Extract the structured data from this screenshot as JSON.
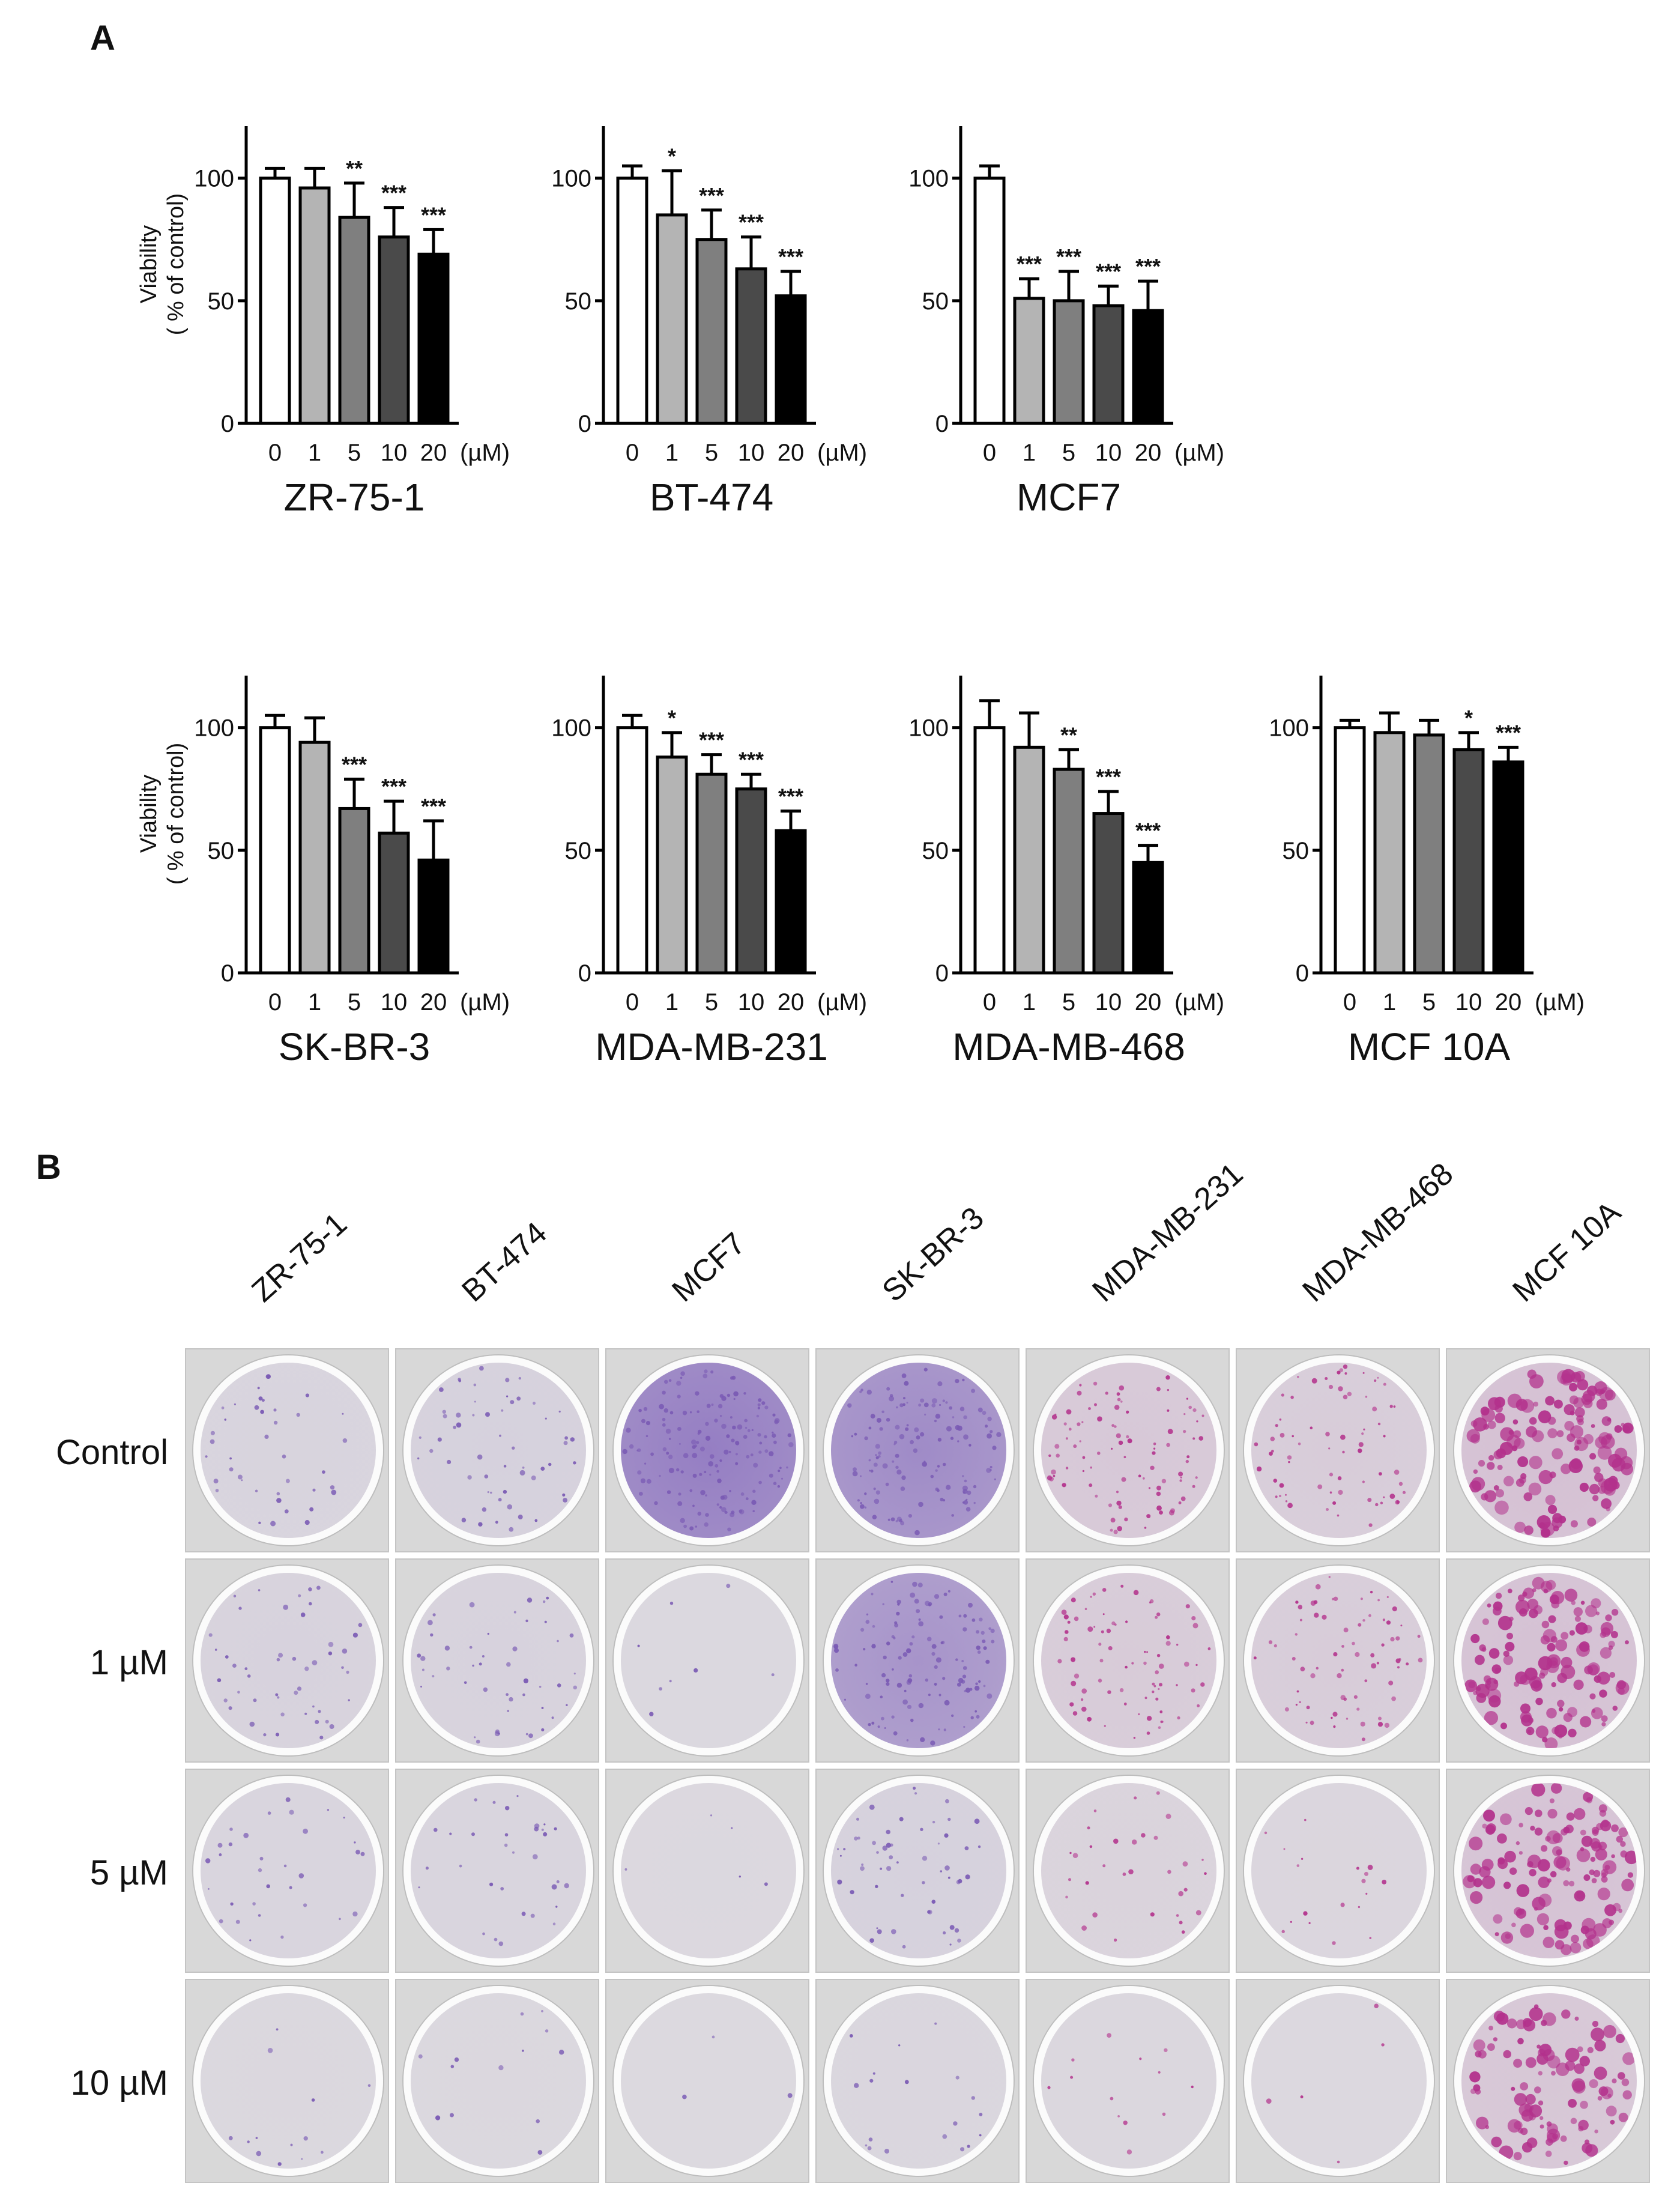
{
  "panels": {
    "a": "A",
    "b": "B"
  },
  "doses": [
    "0",
    "1",
    "5",
    "10",
    "20"
  ],
  "dose_unit": "(µM)",
  "ylabel_line1": "Viability",
  "ylabel_line2": "( % of control)",
  "chart_data": [
    {
      "type": "bar",
      "title": "ZR-75-1",
      "categories": [
        "0",
        "1",
        "5",
        "10",
        "20"
      ],
      "values": [
        100,
        96,
        84,
        76,
        69
      ],
      "errors": [
        4,
        8,
        14,
        12,
        10
      ],
      "sig": [
        "",
        "",
        "**",
        "***",
        "***"
      ],
      "ylim": [
        0,
        120
      ],
      "yticks": [
        0,
        50,
        100
      ],
      "ylabel": "Viability ( % of control)",
      "xlabel": "(µM)"
    },
    {
      "type": "bar",
      "title": "BT-474",
      "categories": [
        "0",
        "1",
        "5",
        "10",
        "20"
      ],
      "values": [
        100,
        85,
        75,
        63,
        52
      ],
      "errors": [
        5,
        18,
        12,
        13,
        10
      ],
      "sig": [
        "",
        "*",
        "***",
        "***",
        "***"
      ],
      "ylim": [
        0,
        120
      ],
      "yticks": [
        0,
        50,
        100
      ],
      "ylabel": "",
      "xlabel": "(µM)"
    },
    {
      "type": "bar",
      "title": "MCF7",
      "categories": [
        "0",
        "1",
        "5",
        "10",
        "20"
      ],
      "values": [
        100,
        51,
        50,
        48,
        46
      ],
      "errors": [
        5,
        8,
        12,
        8,
        12
      ],
      "sig": [
        "",
        "***",
        "***",
        "***",
        "***"
      ],
      "ylim": [
        0,
        120
      ],
      "yticks": [
        0,
        50,
        100
      ],
      "ylabel": "",
      "xlabel": "(µM)"
    },
    {
      "type": "bar",
      "title": "SK-BR-3",
      "categories": [
        "0",
        "1",
        "5",
        "10",
        "20"
      ],
      "values": [
        100,
        94,
        67,
        57,
        46
      ],
      "errors": [
        5,
        10,
        12,
        13,
        16
      ],
      "sig": [
        "",
        "",
        "***",
        "***",
        "***"
      ],
      "ylim": [
        0,
        120
      ],
      "yticks": [
        0,
        50,
        100
      ],
      "ylabel": "Viability ( % of control)",
      "xlabel": "(µM)"
    },
    {
      "type": "bar",
      "title": "MDA-MB-231",
      "categories": [
        "0",
        "1",
        "5",
        "10",
        "20"
      ],
      "values": [
        100,
        88,
        81,
        75,
        58
      ],
      "errors": [
        5,
        10,
        8,
        6,
        8
      ],
      "sig": [
        "",
        "*",
        "***",
        "***",
        "***"
      ],
      "ylim": [
        0,
        120
      ],
      "yticks": [
        0,
        50,
        100
      ],
      "ylabel": "",
      "xlabel": "(µM)"
    },
    {
      "type": "bar",
      "title": "MDA-MB-468",
      "categories": [
        "0",
        "1",
        "5",
        "10",
        "20"
      ],
      "values": [
        100,
        92,
        83,
        65,
        45
      ],
      "errors": [
        11,
        14,
        8,
        9,
        7
      ],
      "sig": [
        "",
        "",
        "**",
        "***",
        "***"
      ],
      "ylim": [
        0,
        120
      ],
      "yticks": [
        0,
        50,
        100
      ],
      "ylabel": "",
      "xlabel": "(µM)"
    },
    {
      "type": "bar",
      "title": "MCF 10A",
      "categories": [
        "0",
        "1",
        "5",
        "10",
        "20"
      ],
      "values": [
        100,
        98,
        97,
        91,
        86
      ],
      "errors": [
        3,
        8,
        6,
        7,
        6
      ],
      "sig": [
        "",
        "",
        "",
        "*",
        "***"
      ],
      "ylim": [
        0,
        120
      ],
      "yticks": [
        0,
        50,
        100
      ],
      "ylabel": "",
      "xlabel": "(µM)"
    }
  ],
  "colony_assay": {
    "columns": [
      "ZR-75-1",
      "BT-474",
      "MCF7",
      "SK-BR-3",
      "MDA-MB-231",
      "MDA-MB-468",
      "MCF 10A"
    ],
    "rows": [
      "Control",
      "1 µM",
      "5 µM",
      "10 µM"
    ],
    "stain_density": [
      [
        0.25,
        0.35,
        1.0,
        0.85,
        0.6,
        0.45,
        0.9
      ],
      [
        0.3,
        0.3,
        0.05,
        0.75,
        0.5,
        0.45,
        0.85
      ],
      [
        0.2,
        0.2,
        0.03,
        0.35,
        0.2,
        0.12,
        0.8
      ],
      [
        0.08,
        0.08,
        0.02,
        0.12,
        0.08,
        0.03,
        0.65
      ]
    ],
    "colors": {
      "purple": "#7a5ab4",
      "magenta": "#b3318c",
      "well_bg": "#dcd9df"
    }
  }
}
